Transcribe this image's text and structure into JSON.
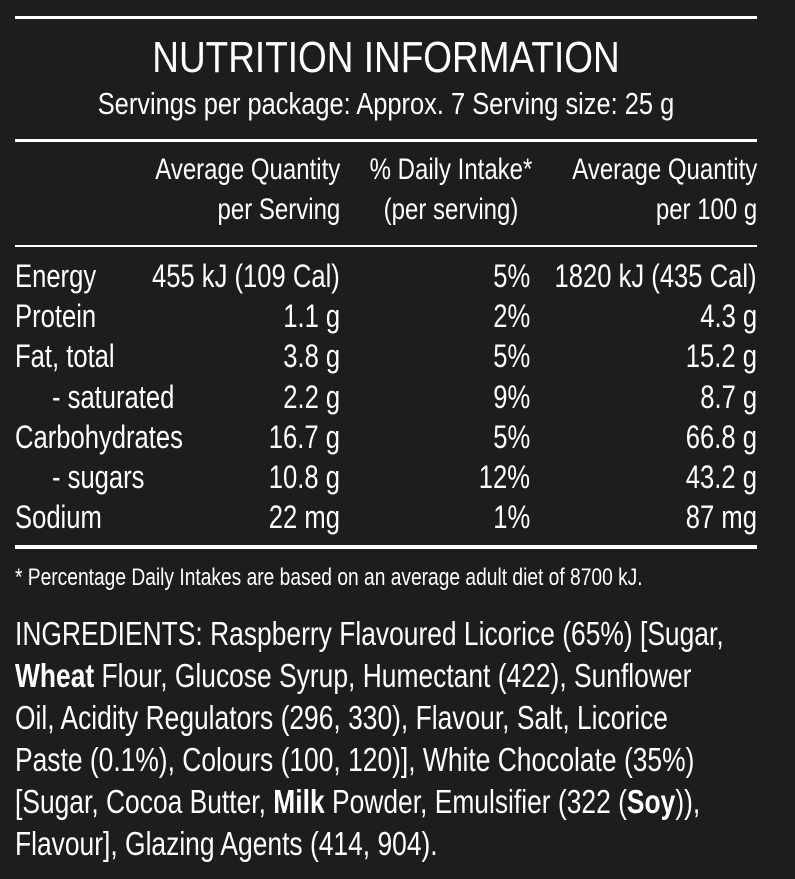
{
  "panel": {
    "title": "NUTRITION INFORMATION",
    "subtitle": "Servings per package: Approx. 7  Serving size: 25 g"
  },
  "columns": {
    "per_serving": [
      "Average Quantity",
      "per Serving"
    ],
    "daily_intake": [
      "% Daily Intake*",
      "(per serving)"
    ],
    "per_100g": [
      "Average Quantity",
      "per 100 g"
    ]
  },
  "rows": [
    {
      "name": "Energy",
      "per_serving": "455 kJ (109 Cal)",
      "daily_intake": "5%",
      "per_100g": "1820 kJ (435 Cal)"
    },
    {
      "name": "Protein",
      "per_serving": "1.1 g",
      "daily_intake": "2%",
      "per_100g": "4.3 g"
    },
    {
      "name": "Fat, total",
      "per_serving": "3.8 g",
      "daily_intake": "5%",
      "per_100g": "15.2 g"
    },
    {
      "name": "- saturated",
      "per_serving": "2.2 g",
      "daily_intake": "9%",
      "per_100g": "8.7 g"
    },
    {
      "name": "Carbohydrates",
      "per_serving": "16.7 g",
      "daily_intake": "5%",
      "per_100g": "66.8 g"
    },
    {
      "name": "- sugars",
      "per_serving": "10.8 g",
      "daily_intake": "12%",
      "per_100g": "43.2 g"
    },
    {
      "name": "Sodium",
      "per_serving": "22 mg",
      "daily_intake": "1%",
      "per_100g": "87 mg"
    }
  ],
  "footnote": "* Percentage Daily Intakes are based on an average adult diet of 8700 kJ.",
  "ingredients": {
    "p1": "INGREDIENTS: Raspberry Flavoured Licorice (65%) [Sugar,",
    "b1": "Wheat",
    "p2": " Flour, Glucose Syrup, Humectant (422), Sunflower",
    "p3": "Oil, Acidity Regulators (296, 330), Flavour, Salt, Licorice",
    "p4": "Paste (0.1%), Colours (100, 120)], White Chocolate (35%)",
    "p5": "[Sugar, Cocoa Butter, ",
    "b2": "Milk",
    "p6": " Powder, Emulsifier (322 (",
    "b3": "Soy",
    "p7": ")),",
    "p8": "Flavour], Glazing Agents (414, 904)."
  },
  "colors": {
    "background": "#1e1c1d",
    "text": "#ffffff"
  }
}
